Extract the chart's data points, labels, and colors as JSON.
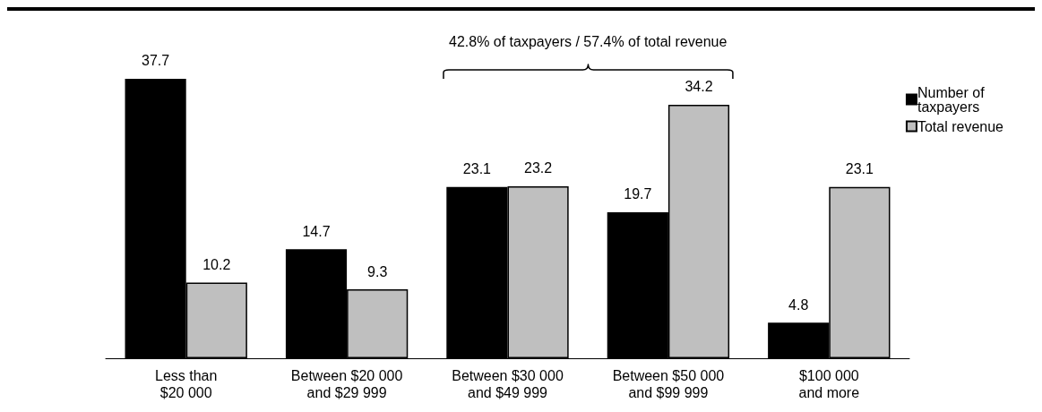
{
  "chart_data": {
    "type": "bar",
    "categories": [
      "Less than\n$20 000",
      "Between $20 000\nand $29 999",
      "Between $30 000\nand $49 999",
      "Between $50 000\nand $99 999",
      "$100 000\nand more"
    ],
    "series": [
      {
        "name": "Number of taxpayers",
        "color": "#000000",
        "values": [
          37.7,
          14.7,
          23.1,
          19.7,
          4.8
        ]
      },
      {
        "name": "Total revenue",
        "color": "#bfbfbf",
        "values": [
          10.2,
          9.3,
          23.2,
          34.2,
          23.1
        ]
      }
    ],
    "annotations": [
      "42.8% of taxpayers / 57.4% of total revenue"
    ],
    "data_labels": true,
    "legend": "top right",
    "grid": false
  }
}
